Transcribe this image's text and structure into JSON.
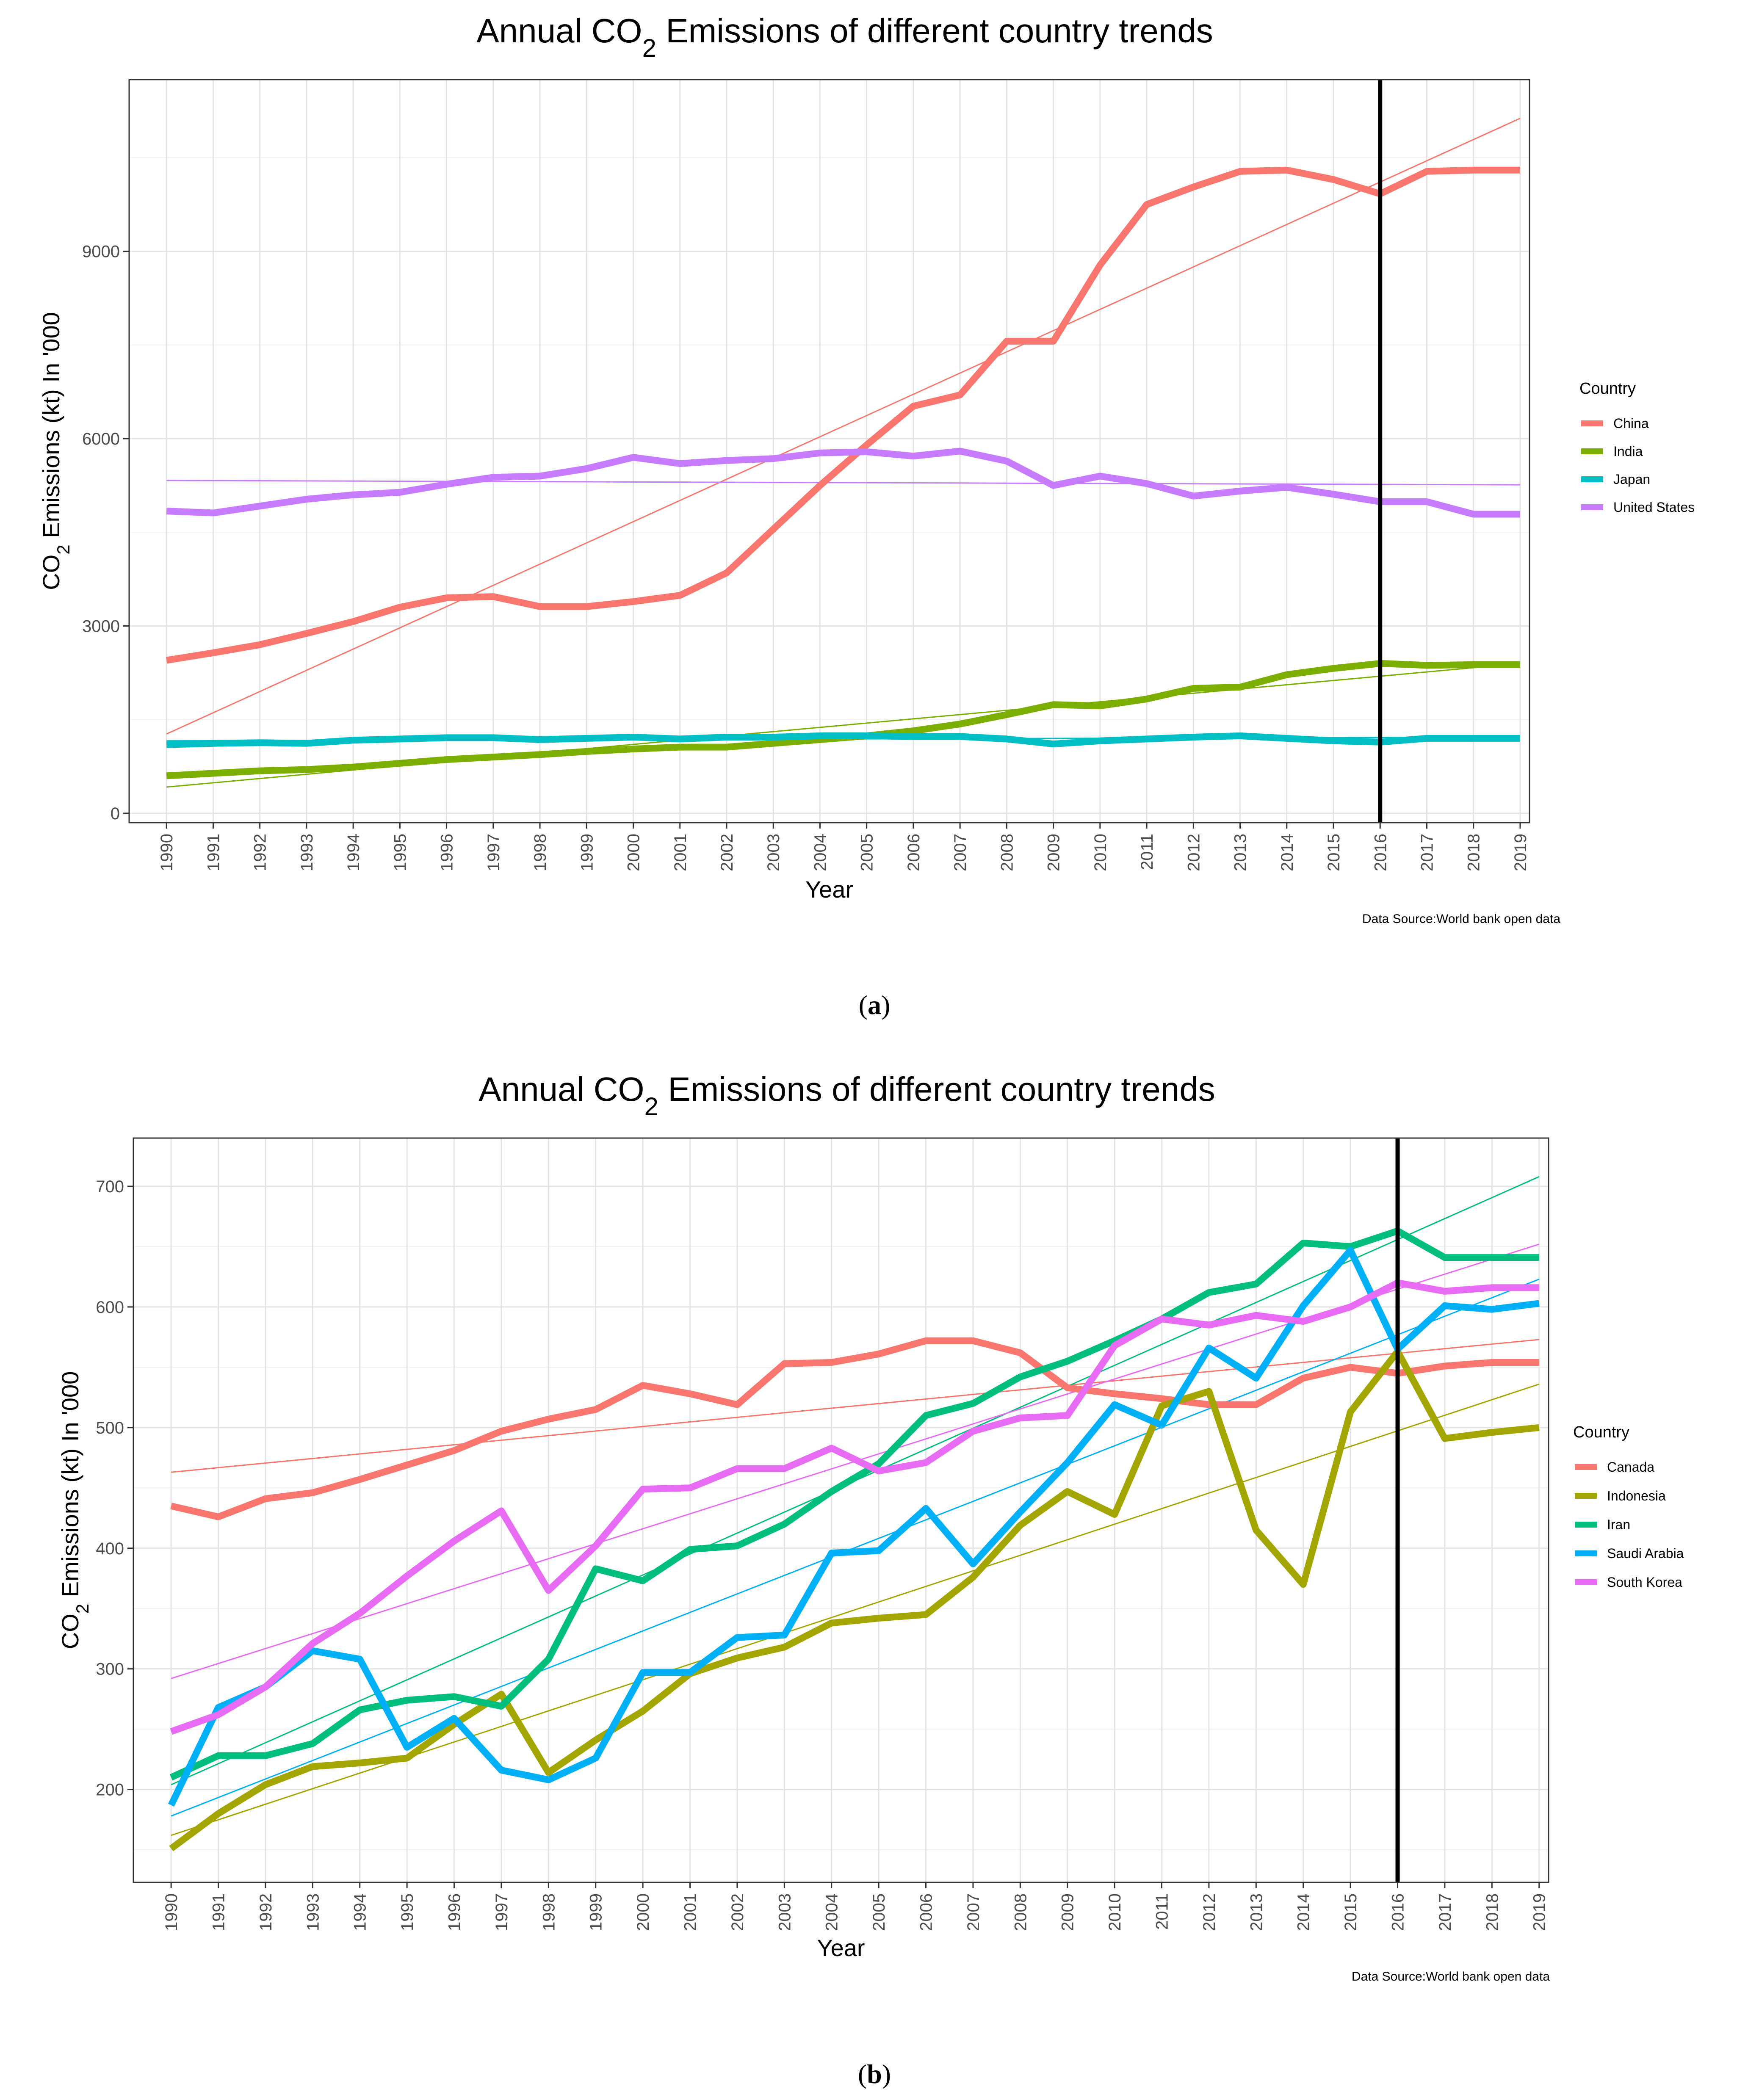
{
  "panels": [
    {
      "sub_label": "(a)",
      "caption": "Data Source:World bank open data"
    },
    {
      "sub_label": "(b)",
      "caption": "Data Source:World bank open data"
    }
  ],
  "chart_data": [
    {
      "type": "line",
      "title": {
        "before": "Annual CO",
        "sub": "2",
        "after": " Emissions of different country trends"
      },
      "xlabel": "Year",
      "ylabel": {
        "before": "CO",
        "sub": "2",
        "after": " Emissions (kt) In '000"
      },
      "x": [
        1990,
        1991,
        1992,
        1993,
        1994,
        1995,
        1996,
        1997,
        1998,
        1999,
        2000,
        2001,
        2002,
        2003,
        2004,
        2005,
        2006,
        2007,
        2008,
        2009,
        2010,
        2011,
        2012,
        2013,
        2014,
        2015,
        2016,
        2017,
        2018,
        2019
      ],
      "xlim": [
        1989.2,
        2019.2
      ],
      "ylim": [
        -150,
        11750
      ],
      "yticks": [
        0,
        3000,
        6000,
        9000
      ],
      "vline": 2016,
      "legend_title": "Country",
      "legend_position": "right",
      "grid": true,
      "series": [
        {
          "name": "China",
          "color": "#F8766D",
          "values": [
            2450,
            2570,
            2700,
            2880,
            3070,
            3300,
            3450,
            3470,
            3310,
            3310,
            3390,
            3490,
            3850,
            4550,
            5250,
            5900,
            6520,
            6700,
            7560,
            7560,
            8780,
            9750,
            10030,
            10280,
            10300,
            10150,
            9920,
            10280,
            10300,
            10300
          ],
          "trend": [
            1270,
            11130
          ]
        },
        {
          "name": "India",
          "color": "#7CAE00",
          "values": [
            600,
            640,
            680,
            700,
            740,
            800,
            860,
            900,
            940,
            990,
            1030,
            1060,
            1060,
            1120,
            1180,
            1240,
            1320,
            1430,
            1580,
            1740,
            1720,
            1830,
            2000,
            2020,
            2220,
            2320,
            2400,
            2370,
            2380,
            2380
          ],
          "trend": [
            420,
            2400
          ]
        },
        {
          "name": "Japan",
          "color": "#00BFC4",
          "values": [
            1100,
            1120,
            1130,
            1120,
            1170,
            1190,
            1210,
            1210,
            1180,
            1200,
            1220,
            1190,
            1220,
            1220,
            1240,
            1240,
            1230,
            1230,
            1190,
            1110,
            1160,
            1190,
            1220,
            1240,
            1200,
            1160,
            1140,
            1200,
            1200,
            1200
          ],
          "trend": [
            1160,
            1220
          ]
        },
        {
          "name": "United States",
          "color": "#C77CFF",
          "values": [
            4840,
            4810,
            4920,
            5030,
            5100,
            5140,
            5270,
            5380,
            5400,
            5520,
            5700,
            5600,
            5650,
            5680,
            5770,
            5790,
            5720,
            5800,
            5640,
            5250,
            5400,
            5280,
            5080,
            5160,
            5220,
            5110,
            4990,
            4990,
            4790,
            4790
          ],
          "trend": [
            5330,
            5260
          ]
        }
      ]
    },
    {
      "type": "line",
      "title": {
        "before": "Annual CO",
        "sub": "2",
        "after": " Emissions of different country trends"
      },
      "xlabel": "Year",
      "ylabel": {
        "before": "CO",
        "sub": "2",
        "after": " Emissions (kt) In '000"
      },
      "x": [
        1990,
        1991,
        1992,
        1993,
        1994,
        1995,
        1996,
        1997,
        1998,
        1999,
        2000,
        2001,
        2002,
        2003,
        2004,
        2005,
        2006,
        2007,
        2008,
        2009,
        2010,
        2011,
        2012,
        2013,
        2014,
        2015,
        2016,
        2017,
        2018,
        2019
      ],
      "xlim": [
        1989.2,
        2019.2
      ],
      "ylim": [
        123,
        740
      ],
      "yticks": [
        200,
        300,
        400,
        500,
        600,
        700
      ],
      "vline": 2016,
      "legend_title": "Country",
      "legend_position": "right",
      "grid": true,
      "series": [
        {
          "name": "Canada",
          "color": "#F8766D",
          "values": [
            435,
            426,
            441,
            446,
            457,
            469,
            481,
            497,
            507,
            515,
            535,
            528,
            519,
            553,
            554,
            561,
            572,
            572,
            562,
            533,
            528,
            524,
            519,
            519,
            541,
            550,
            545,
            551,
            554,
            554
          ],
          "trend": [
            463,
            573
          ]
        },
        {
          "name": "Indonesia",
          "color": "#A3A500",
          "values": [
            151,
            180,
            204,
            219,
            222,
            226,
            254,
            279,
            214,
            241,
            265,
            296,
            309,
            318,
            338,
            342,
            345,
            376,
            419,
            447,
            428,
            518,
            530,
            415,
            370,
            513,
            563,
            491,
            496,
            500
          ],
          "trend": [
            162,
            536
          ]
        },
        {
          "name": "Iran",
          "color": "#00BF7D",
          "values": [
            210,
            228,
            228,
            238,
            266,
            274,
            277,
            269,
            308,
            383,
            373,
            399,
            402,
            420,
            447,
            470,
            510,
            520,
            542,
            555,
            572,
            590,
            612,
            619,
            653,
            650,
            663,
            641,
            641,
            641
          ],
          "trend": [
            204,
            708
          ]
        },
        {
          "name": "Saudi Arabia",
          "color": "#00B0F6",
          "values": [
            187,
            268,
            285,
            315,
            308,
            235,
            259,
            216,
            208,
            226,
            297,
            297,
            326,
            328,
            396,
            398,
            433,
            387,
            430,
            471,
            519,
            502,
            566,
            541,
            601,
            647,
            565,
            601,
            598,
            603
          ],
          "trend": [
            178,
            623
          ]
        },
        {
          "name": "South Korea",
          "color": "#E76BF3",
          "values": [
            248,
            262,
            285,
            321,
            346,
            377,
            406,
            431,
            365,
            402,
            449,
            450,
            466,
            466,
            483,
            464,
            471,
            497,
            508,
            510,
            568,
            590,
            585,
            593,
            588,
            600,
            620,
            613,
            616,
            616
          ],
          "trend": [
            292,
            652
          ]
        }
      ]
    }
  ]
}
